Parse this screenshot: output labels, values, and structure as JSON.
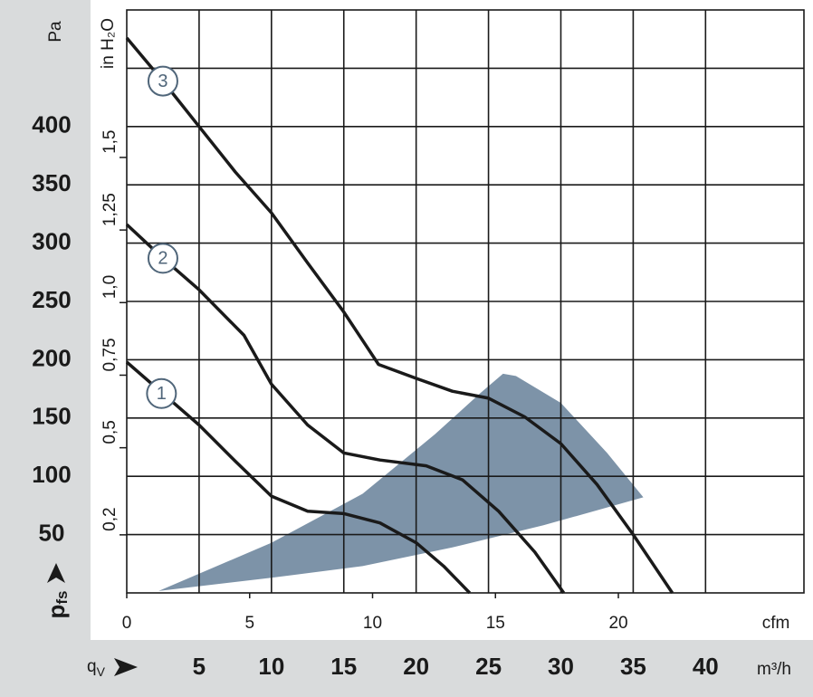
{
  "chart_data": {
    "type": "line",
    "y_label": "Pa",
    "y_symbol": "p",
    "y_symbol_subscript": "fs",
    "x_symbol": "q",
    "x_symbol_subscript": "V",
    "x_unit": "m³/h",
    "x2_unit": "cfm",
    "y2_label": "in H₂O",
    "xlim": [
      0,
      46.8
    ],
    "xticks": [
      5,
      10,
      15,
      20,
      25,
      30,
      35,
      40
    ],
    "x2lim": [
      0,
      27.55
    ],
    "x2ticks": [
      0,
      5,
      10,
      15,
      20
    ],
    "ylim": [
      0,
      500
    ],
    "yticks": [
      50,
      100,
      150,
      200,
      250,
      300,
      350,
      400
    ],
    "ygrid": [
      50,
      100,
      150,
      200,
      250,
      300,
      350,
      400,
      450
    ],
    "y2lim": [
      0,
      2.008
    ],
    "y2ticks": [
      {
        "value": 0.2,
        "label": "0,2"
      },
      {
        "value": 0.5,
        "label": "0,5"
      },
      {
        "value": 0.75,
        "label": "0,75"
      },
      {
        "value": 1.0,
        "label": "1,0"
      },
      {
        "value": 1.25,
        "label": "1,25"
      },
      {
        "value": 1.5,
        "label": "1,5"
      }
    ],
    "grid": true,
    "series": [
      {
        "name": "3",
        "color": "#1a1a1a",
        "label_at": [
          2.5,
          439
        ],
        "x": [
          0,
          2.5,
          5,
          7.5,
          10,
          12.5,
          15,
          17.4,
          20,
          22.5,
          25,
          27.5,
          30,
          32.5,
          35,
          37.7
        ],
        "values": [
          476,
          439,
          400,
          361,
          326,
          283,
          241,
          196,
          184,
          173,
          167,
          151,
          128,
          93,
          50,
          0
        ]
      },
      {
        "name": "2",
        "color": "#1a1a1a",
        "label_at": [
          2.5,
          287
        ],
        "x": [
          0,
          2.5,
          5,
          8.1,
          10,
          12.5,
          15,
          17.5,
          20.7,
          23.2,
          25.7,
          28.2,
          30.2
        ],
        "values": [
          316,
          287,
          260,
          221,
          179,
          144,
          120,
          114,
          109,
          97,
          70,
          35,
          0
        ]
      },
      {
        "name": "1",
        "color": "#1a1a1a",
        "label_at": [
          2.4,
          171
        ],
        "x": [
          0,
          2.5,
          5,
          7.5,
          10,
          12.5,
          15,
          17.5,
          20,
          21.9,
          23.7
        ],
        "values": [
          198,
          171,
          144,
          113,
          83,
          70,
          68,
          60,
          43,
          23,
          0
        ]
      }
    ],
    "operating_range": {
      "color": "#7d93a8",
      "x": [
        2.2,
        10,
        16.3,
        22.5,
        28.8,
        35.7,
        33.2,
        30,
        26.9,
        26,
        24.4,
        21.3,
        16.3,
        10
      ],
      "values": [
        1.6,
        13,
        23,
        39,
        58,
        82,
        120,
        163,
        186,
        188,
        171,
        136,
        85,
        43
      ]
    }
  }
}
